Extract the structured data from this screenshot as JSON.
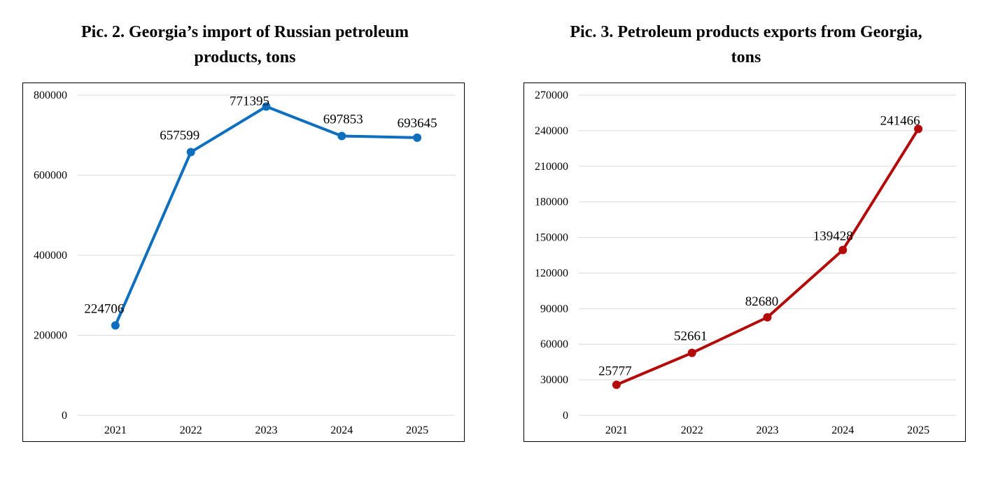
{
  "chart_data": [
    {
      "type": "line",
      "title_lines": [
        "Pic. 2. Georgia’s import of Russian petroleum",
        "products, tons"
      ],
      "categories": [
        "2021",
        "2022",
        "2023",
        "2024",
        "2025"
      ],
      "series": [
        {
          "name": "Import of Russian petroleum products",
          "values": [
            224706,
            657599,
            771395,
            697853,
            693645
          ]
        }
      ],
      "value_labels": [
        "224706",
        "657599",
        "771395",
        "697853",
        "693645"
      ],
      "yticks": [
        0,
        200000,
        400000,
        600000,
        800000
      ],
      "ylim": [
        0,
        800000
      ],
      "grid": true,
      "legend": "none",
      "color": "#0F6FBF"
    },
    {
      "type": "line",
      "title_lines": [
        "Pic. 3. Petroleum products exports from Georgia,",
        "tons"
      ],
      "categories": [
        "2021",
        "2022",
        "2023",
        "2024",
        "2025"
      ],
      "series": [
        {
          "name": "Petroleum products exports",
          "values": [
            25777,
            52661,
            82680,
            139428,
            241466
          ]
        }
      ],
      "value_labels": [
        "25777",
        "52661",
        "82680",
        "139428",
        "241466"
      ],
      "yticks": [
        0,
        30000,
        60000,
        90000,
        120000,
        150000,
        180000,
        210000,
        240000,
        270000
      ],
      "ylim": [
        0,
        270000
      ],
      "grid": true,
      "legend": "none",
      "color": "#B30A0A"
    }
  ]
}
